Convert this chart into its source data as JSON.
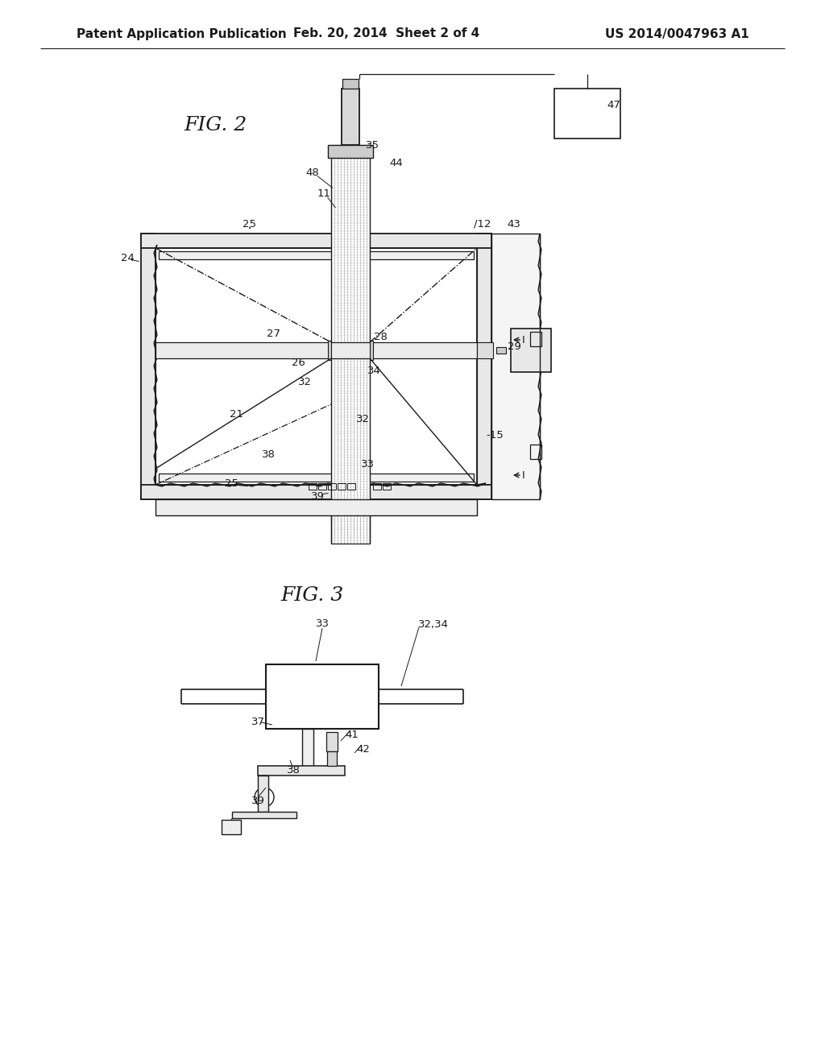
{
  "bg_color": "#ffffff",
  "line_color": "#1a1a1a",
  "header_left": "Patent Application Publication",
  "header_mid": "Feb. 20, 2014  Sheet 2 of 4",
  "header_right": "US 2014/0047963 A1",
  "fig2_label": "FIG. 2",
  "fig3_label": "FIG. 3"
}
